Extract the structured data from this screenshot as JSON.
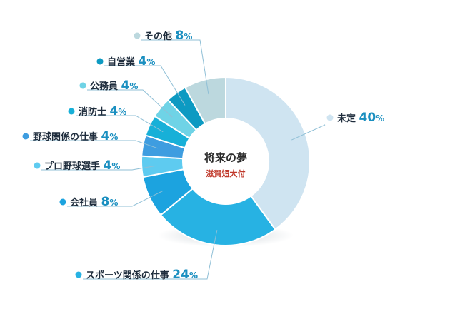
{
  "chart_data": {
    "type": "pie",
    "title": "将来の夢",
    "subtitle": "滋賀短大付",
    "unit": "%",
    "slices": [
      {
        "label": "未定",
        "value": 40,
        "color": "#cfe4f1"
      },
      {
        "label": "スポーツ関係の仕事",
        "value": 24,
        "color": "#27b2e3"
      },
      {
        "label": "会社員",
        "value": 8,
        "color": "#1ca3df"
      },
      {
        "label": "プロ野球選手",
        "value": 4,
        "color": "#5ecbf0"
      },
      {
        "label": "野球関係の仕事",
        "value": 4,
        "color": "#3e9de0"
      },
      {
        "label": "消防士",
        "value": 4,
        "color": "#17b0d8"
      },
      {
        "label": "公務員",
        "value": 4,
        "color": "#6fd3e6"
      },
      {
        "label": "自営業",
        "value": 4,
        "color": "#0d9ac2"
      },
      {
        "label": "その他",
        "value": 8,
        "color": "#bcd8de"
      }
    ]
  }
}
